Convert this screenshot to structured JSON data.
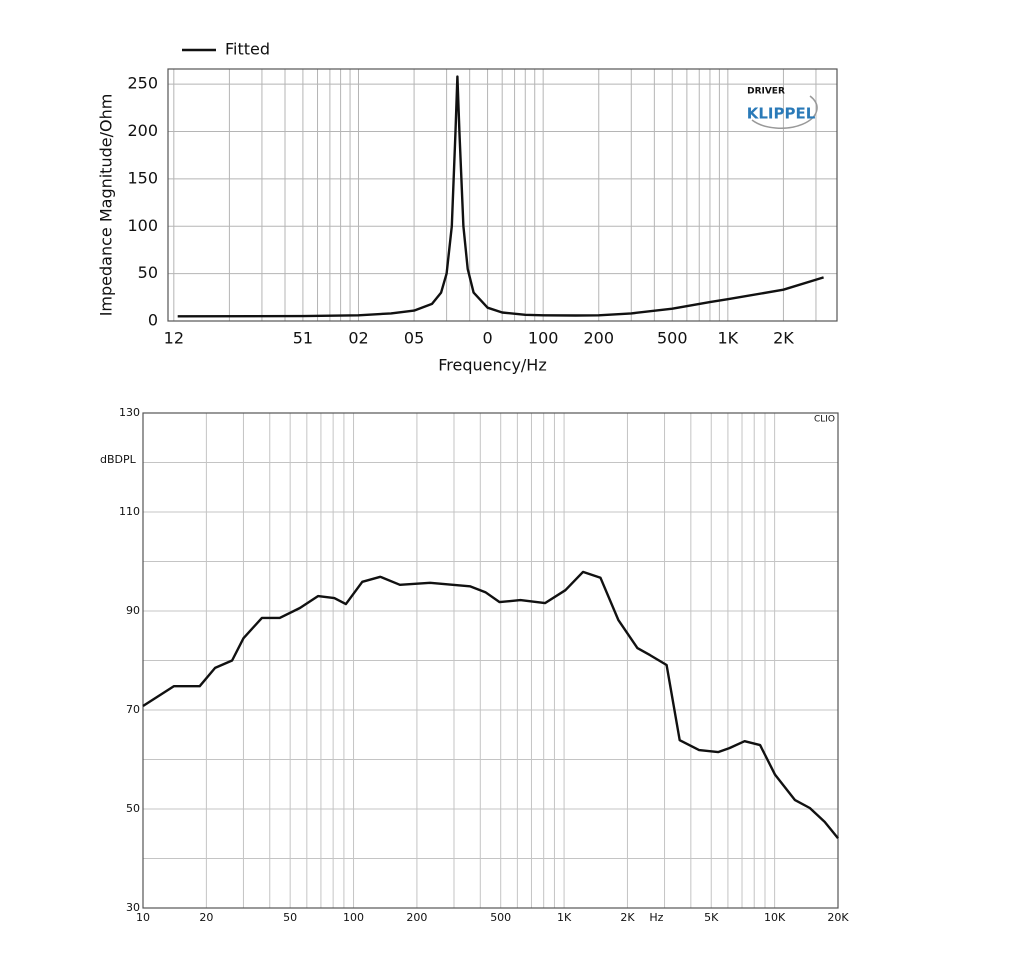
{
  "chart_data": [
    {
      "type": "line",
      "legend": "top-left",
      "x_label": "Frequency/Hz",
      "y_label": "Impedance Magnitude/Ohm",
      "annotations": [
        "DRIVER",
        "KLIPPEL"
      ],
      "xscale": "log",
      "xlim": [
        0.93,
        3900
      ],
      "ylim": [
        0,
        266
      ],
      "xticks": [
        {
          "value": 1,
          "label": "12"
        },
        {
          "value": 5,
          "label": "51"
        },
        {
          "value": 10,
          "label": "02"
        },
        {
          "value": 20,
          "label": "05"
        },
        {
          "value": 50,
          "label": "0"
        },
        100,
        200,
        500,
        {
          "value": 1000,
          "label": "1K"
        },
        {
          "value": 2000,
          "label": "2K"
        }
      ],
      "xminor": [
        2,
        3,
        4,
        6,
        7,
        8,
        9,
        30,
        40,
        60,
        70,
        80,
        90,
        300,
        400,
        600,
        700,
        800,
        900,
        3000
      ],
      "yticks": [
        0,
        50,
        100,
        150,
        200,
        250
      ],
      "grid": true,
      "series": [
        {
          "name": "Fitted",
          "color": "#111111",
          "x": [
            1.05,
            5,
            10,
            15,
            20,
            25,
            28,
            30,
            32,
            33.5,
            34.3,
            35.2,
            37,
            39,
            42,
            50,
            60,
            80,
            100,
            150,
            200,
            300,
            500,
            800,
            1000,
            2000,
            3300
          ],
          "values": [
            5,
            5.2,
            6,
            8,
            11,
            18,
            30,
            50,
            100,
            200,
            258,
            200,
            100,
            55,
            30,
            14,
            9,
            6.5,
            6,
            5.8,
            6,
            8,
            13,
            20,
            23,
            33,
            46
          ]
        }
      ]
    },
    {
      "type": "line",
      "x_label": "Hz",
      "y_label": "dBDPL",
      "annotations": [
        "CLIO"
      ],
      "xscale": "log",
      "xlim": [
        10,
        20000
      ],
      "ylim": [
        30,
        130
      ],
      "xticks": [
        10,
        20,
        50,
        100,
        200,
        500,
        {
          "value": 1000,
          "label": "1K"
        },
        {
          "value": 2000,
          "label": "2K"
        },
        {
          "value": 5000,
          "label": "5K"
        },
        {
          "value": 10000,
          "label": "10K"
        },
        {
          "value": 20000,
          "label": "20K"
        }
      ],
      "xminor": [
        30,
        40,
        60,
        70,
        80,
        90,
        300,
        400,
        600,
        700,
        800,
        900,
        3000,
        4000,
        6000,
        7000,
        8000,
        9000
      ],
      "yticks": [
        30,
        50,
        70,
        90,
        110,
        130
      ],
      "yminor": [
        40,
        60,
        80,
        100,
        120
      ],
      "grid": true,
      "series": [
        {
          "color": "#111111",
          "x": [
            10,
            14,
            18.6,
            22,
            26.5,
            30,
            36.7,
            44.6,
            55.6,
            67.8,
            81,
            92,
            110,
            134,
            166,
            231,
            357,
            423,
            494,
            620,
            812,
            1014,
            1230,
            1490,
            1810,
            2230,
            2560,
            3070,
            3540,
            4380,
            5390,
            6100,
            7200,
            8530,
            10050,
            12500,
            14700,
            17300,
            20000
          ],
          "values": [
            70.8,
            74.8,
            74.8,
            78.5,
            80,
            84.5,
            88.6,
            88.6,
            90.6,
            93,
            92.6,
            91.4,
            95.9,
            96.9,
            95.3,
            95.7,
            95,
            93.8,
            91.8,
            92.2,
            91.6,
            94.2,
            97.9,
            96.7,
            88.2,
            82.5,
            81.1,
            79.1,
            63.9,
            61.9,
            61.5,
            62.3,
            63.7,
            62.9,
            56.9,
            51.8,
            50.2,
            47.4,
            44.1
          ]
        }
      ]
    }
  ]
}
